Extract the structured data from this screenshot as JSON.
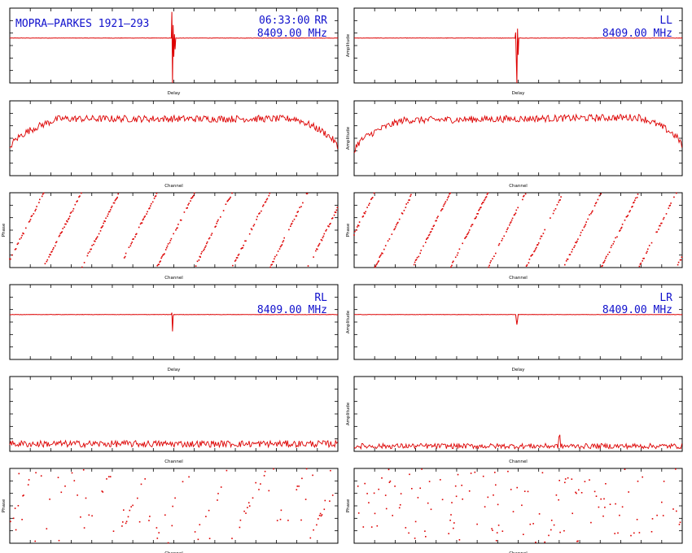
{
  "header": {
    "baseline": "MOPRA—PARKES 1921—293",
    "time": "06:33:00",
    "frequency": "8409.00 MHz"
  },
  "colors": {
    "trace": "#dd0000",
    "annotation": "#1010cc",
    "axes": "#000000"
  },
  "chart_data": [
    {
      "id": "rr-delay",
      "type": "line",
      "polarization": "RR",
      "xlabel": "Delay",
      "ylabel": "",
      "xlim": [
        -256,
        256
      ],
      "ylim": [
        -1,
        1
      ],
      "baseline_level": 0.2,
      "spike_at": -2,
      "spike_shape": [
        [
          -1,
          0.9
        ],
        [
          0,
          -1.0
        ],
        [
          1,
          0.55
        ],
        [
          2,
          -0.3
        ],
        [
          3,
          0.3
        ],
        [
          4,
          -0.1
        ]
      ]
    },
    {
      "id": "ll-delay",
      "type": "line",
      "polarization": "LL",
      "xlabel": "Delay",
      "ylabel": "Amplitude",
      "xlim": [
        -256,
        256
      ],
      "ylim": [
        -1,
        1
      ],
      "baseline_level": 0.2,
      "spike_at": -2,
      "spike_shape": [
        [
          -2,
          0.35
        ],
        [
          -1,
          -0.3
        ],
        [
          0,
          -1.0
        ],
        [
          1,
          0.45
        ],
        [
          2,
          -0.25
        ],
        [
          3,
          0.2
        ]
      ]
    },
    {
      "id": "rr-amp",
      "type": "line",
      "xlabel": "Channel",
      "ylabel": "",
      "xlim": [
        0,
        512
      ],
      "ylim": [
        0.3,
        1.05
      ],
      "shape": "bandpass",
      "noise": 0.035
    },
    {
      "id": "ll-amp",
      "type": "line",
      "xlabel": "Channel",
      "ylabel": "Amplitude",
      "xlim": [
        0,
        512
      ],
      "ylim": [
        0.3,
        1.05
      ],
      "shape": "bandpass-rising",
      "noise": 0.035
    },
    {
      "id": "rr-phase",
      "type": "scatter",
      "xlabel": "Channel",
      "ylabel": "Phase",
      "xlim": [
        0,
        512
      ],
      "ylim": [
        -180,
        180
      ],
      "wraps": 8.7,
      "offset": 0.1,
      "coherent": true
    },
    {
      "id": "ll-phase",
      "type": "scatter",
      "xlabel": "Channel",
      "ylabel": "Phase",
      "xlim": [
        0,
        512
      ],
      "ylim": [
        -180,
        180
      ],
      "wraps": 8.7,
      "offset": 0.45,
      "coherent": true
    },
    {
      "id": "rl-delay",
      "type": "line",
      "polarization": "RL",
      "xlabel": "Delay",
      "ylabel": "",
      "xlim": [
        -256,
        256
      ],
      "ylim": [
        -1,
        1
      ],
      "baseline_level": 0.2,
      "spike_at": -2,
      "spike_shape": [
        [
          -1,
          0.25
        ],
        [
          0,
          -0.25
        ],
        [
          1,
          0.15
        ]
      ]
    },
    {
      "id": "lr-delay",
      "type": "line",
      "polarization": "LR",
      "xlabel": "Delay",
      "ylabel": "Amplitude",
      "xlim": [
        -256,
        256
      ],
      "ylim": [
        -1,
        1
      ],
      "baseline_level": 0.2,
      "spike_at": -2,
      "spike_shape": [
        [
          -1,
          0.07
        ],
        [
          0,
          -0.07
        ],
        [
          1,
          0.05
        ]
      ]
    },
    {
      "id": "rl-amp",
      "type": "line",
      "xlabel": "Channel",
      "ylabel": "",
      "xlim": [
        0,
        512
      ],
      "ylim": [
        0,
        1
      ],
      "shape": "flat",
      "level": 0.1,
      "noise": 0.045
    },
    {
      "id": "lr-amp",
      "type": "line",
      "xlabel": "Channel",
      "ylabel": "Amplitude",
      "xlim": [
        0,
        512
      ],
      "ylim": [
        0,
        1
      ],
      "shape": "flat",
      "level": 0.07,
      "noise": 0.035,
      "spike_channel": 320
    },
    {
      "id": "rl-phase",
      "type": "scatter",
      "xlabel": "Channel",
      "ylabel": "Phase",
      "xlim": [
        0,
        512
      ],
      "ylim": [
        -180,
        180
      ],
      "wraps": 8.5,
      "offset": 0.3,
      "coherent": "partial"
    },
    {
      "id": "lr-phase",
      "type": "scatter",
      "xlabel": "Channel",
      "ylabel": "Phase",
      "xlim": [
        0,
        512
      ],
      "ylim": [
        -180,
        180
      ],
      "coherent": false
    }
  ]
}
